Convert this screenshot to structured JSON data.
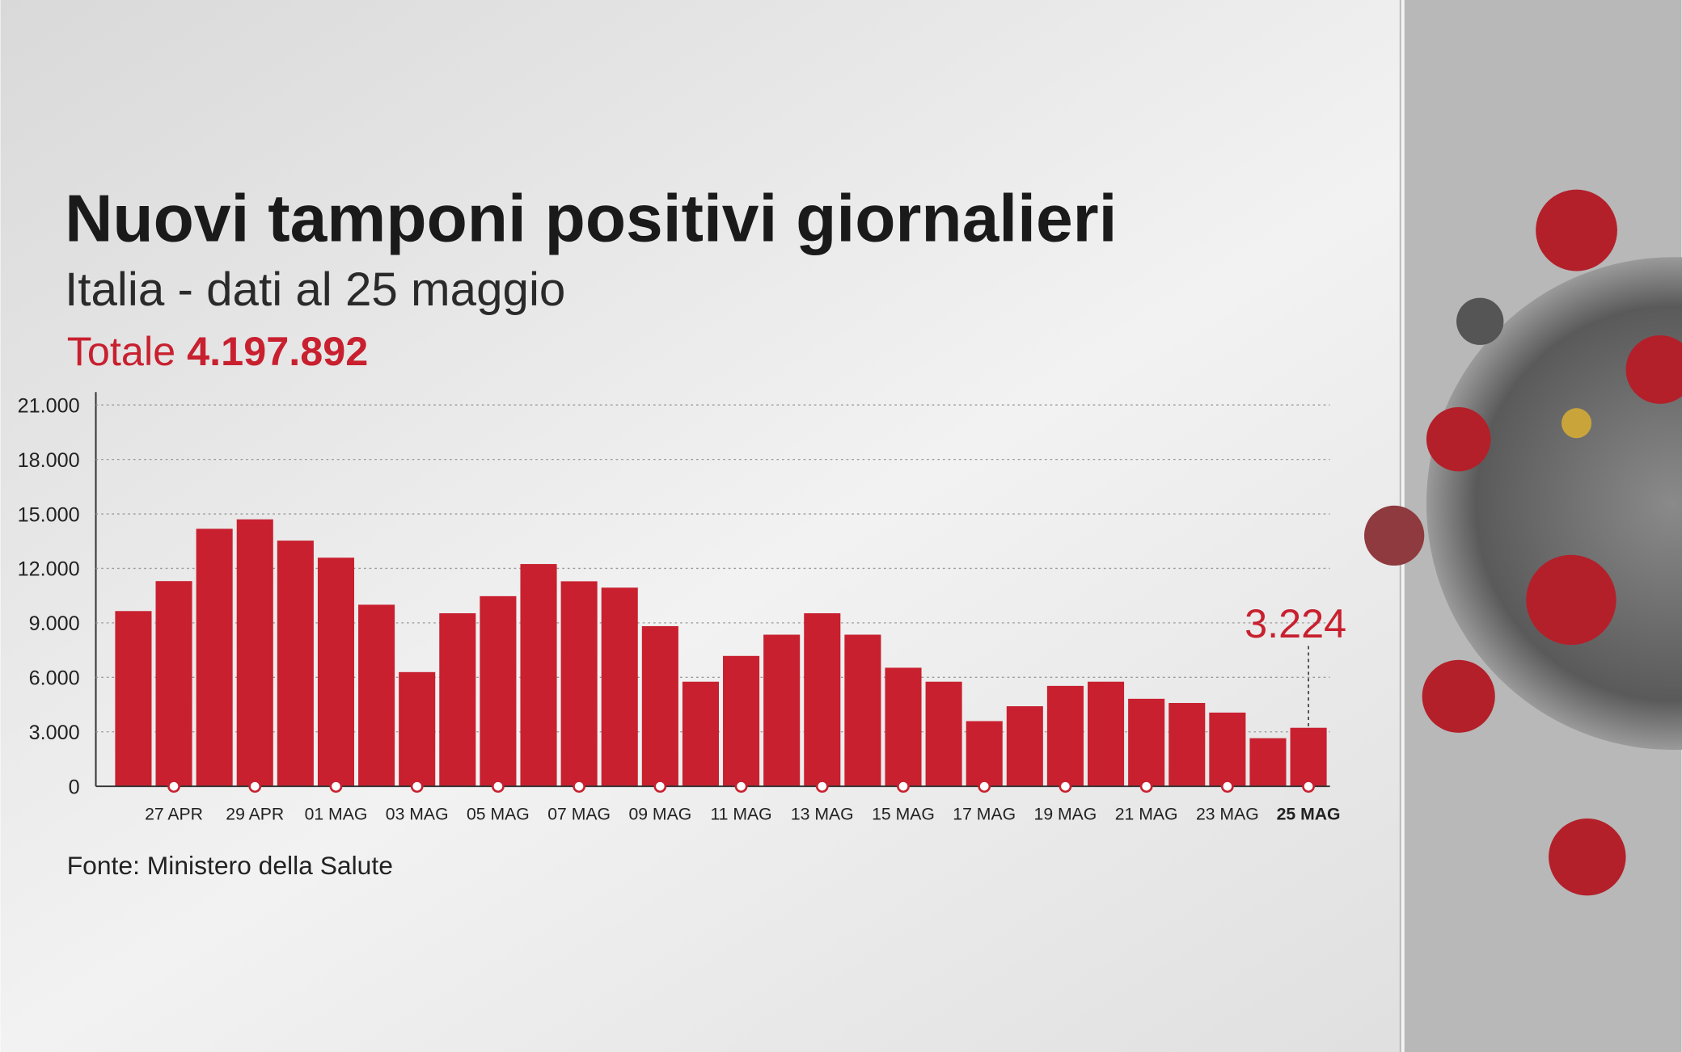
{
  "chart_data": {
    "type": "bar",
    "title": "Nuovi tamponi positivi giornalieri",
    "subtitle": "Italia - dati al 25 maggio",
    "total_label": "Totale",
    "total_value": "4.197.892",
    "source": "Fonte: Ministero della Salute",
    "color": "#c8202f",
    "categories": [
      null,
      "27 APR",
      null,
      "29 APR",
      null,
      "01 MAG",
      null,
      "03 MAG",
      null,
      "05 MAG",
      null,
      "07 MAG",
      null,
      "09 MAG",
      null,
      "11 MAG",
      null,
      "13 MAG",
      null,
      "15 MAG",
      null,
      "17 MAG",
      null,
      "19 MAG",
      null,
      "21 MAG",
      null,
      "23 MAG",
      null,
      "25 MAG"
    ],
    "values": [
      9650,
      11300,
      14180,
      14700,
      13530,
      12590,
      10000,
      6290,
      9530,
      10470,
      12240,
      11290,
      10940,
      8820,
      5760,
      7180,
      8350,
      9530,
      8350,
      6530,
      5760,
      3590,
      4410,
      5530,
      5760,
      4820,
      4590,
      4060,
      2650,
      3224
    ],
    "annotation": {
      "index": 29,
      "label": "3.224"
    },
    "ylim": [
      0,
      21000
    ],
    "yticks": [
      0,
      {
        "value": 3000,
        "label": "3.000"
      },
      {
        "value": 6000,
        "label": "6.000"
      },
      {
        "value": 9000,
        "label": "9.000"
      },
      {
        "value": 12000,
        "label": "12.000"
      },
      {
        "value": 15000,
        "label": "15.000"
      },
      {
        "value": 18000,
        "label": "18.000"
      },
      {
        "value": 21000,
        "label": "21.000"
      }
    ],
    "grid": true
  }
}
